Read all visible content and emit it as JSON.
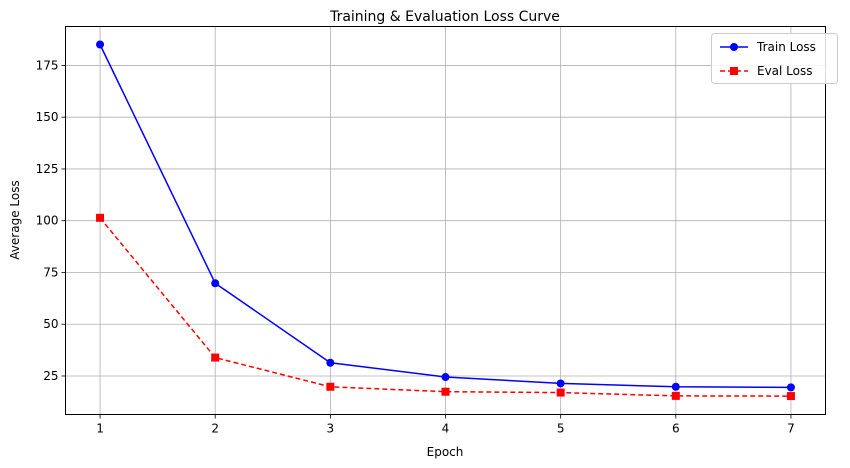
{
  "chart_data": {
    "type": "line",
    "title": "Training & Evaluation Loss Curve",
    "xlabel": "Epoch",
    "ylabel": "Average Loss",
    "x": [
      1,
      2,
      3,
      4,
      5,
      6,
      7
    ],
    "xticks": [
      "1",
      "2",
      "3",
      "4",
      "5",
      "6",
      "7"
    ],
    "yticks": [
      "25",
      "50",
      "75",
      "100",
      "125",
      "150",
      "175"
    ],
    "xlim": [
      0.7,
      7.3
    ],
    "ylim": [
      6.4,
      193.8
    ],
    "grid": true,
    "legend_position": "top-right",
    "series": [
      {
        "name": "Train Loss",
        "values": [
          185.1,
          69.8,
          31.4,
          24.5,
          21.4,
          19.8,
          19.5
        ],
        "color": "#0000ff",
        "line": "solid",
        "marker": "circle"
      },
      {
        "name": "Eval Loss",
        "values": [
          101.4,
          33.9,
          19.8,
          17.4,
          17.0,
          15.4,
          15.3
        ],
        "color": "#ff0000",
        "line": "dashed",
        "marker": "square"
      }
    ]
  }
}
